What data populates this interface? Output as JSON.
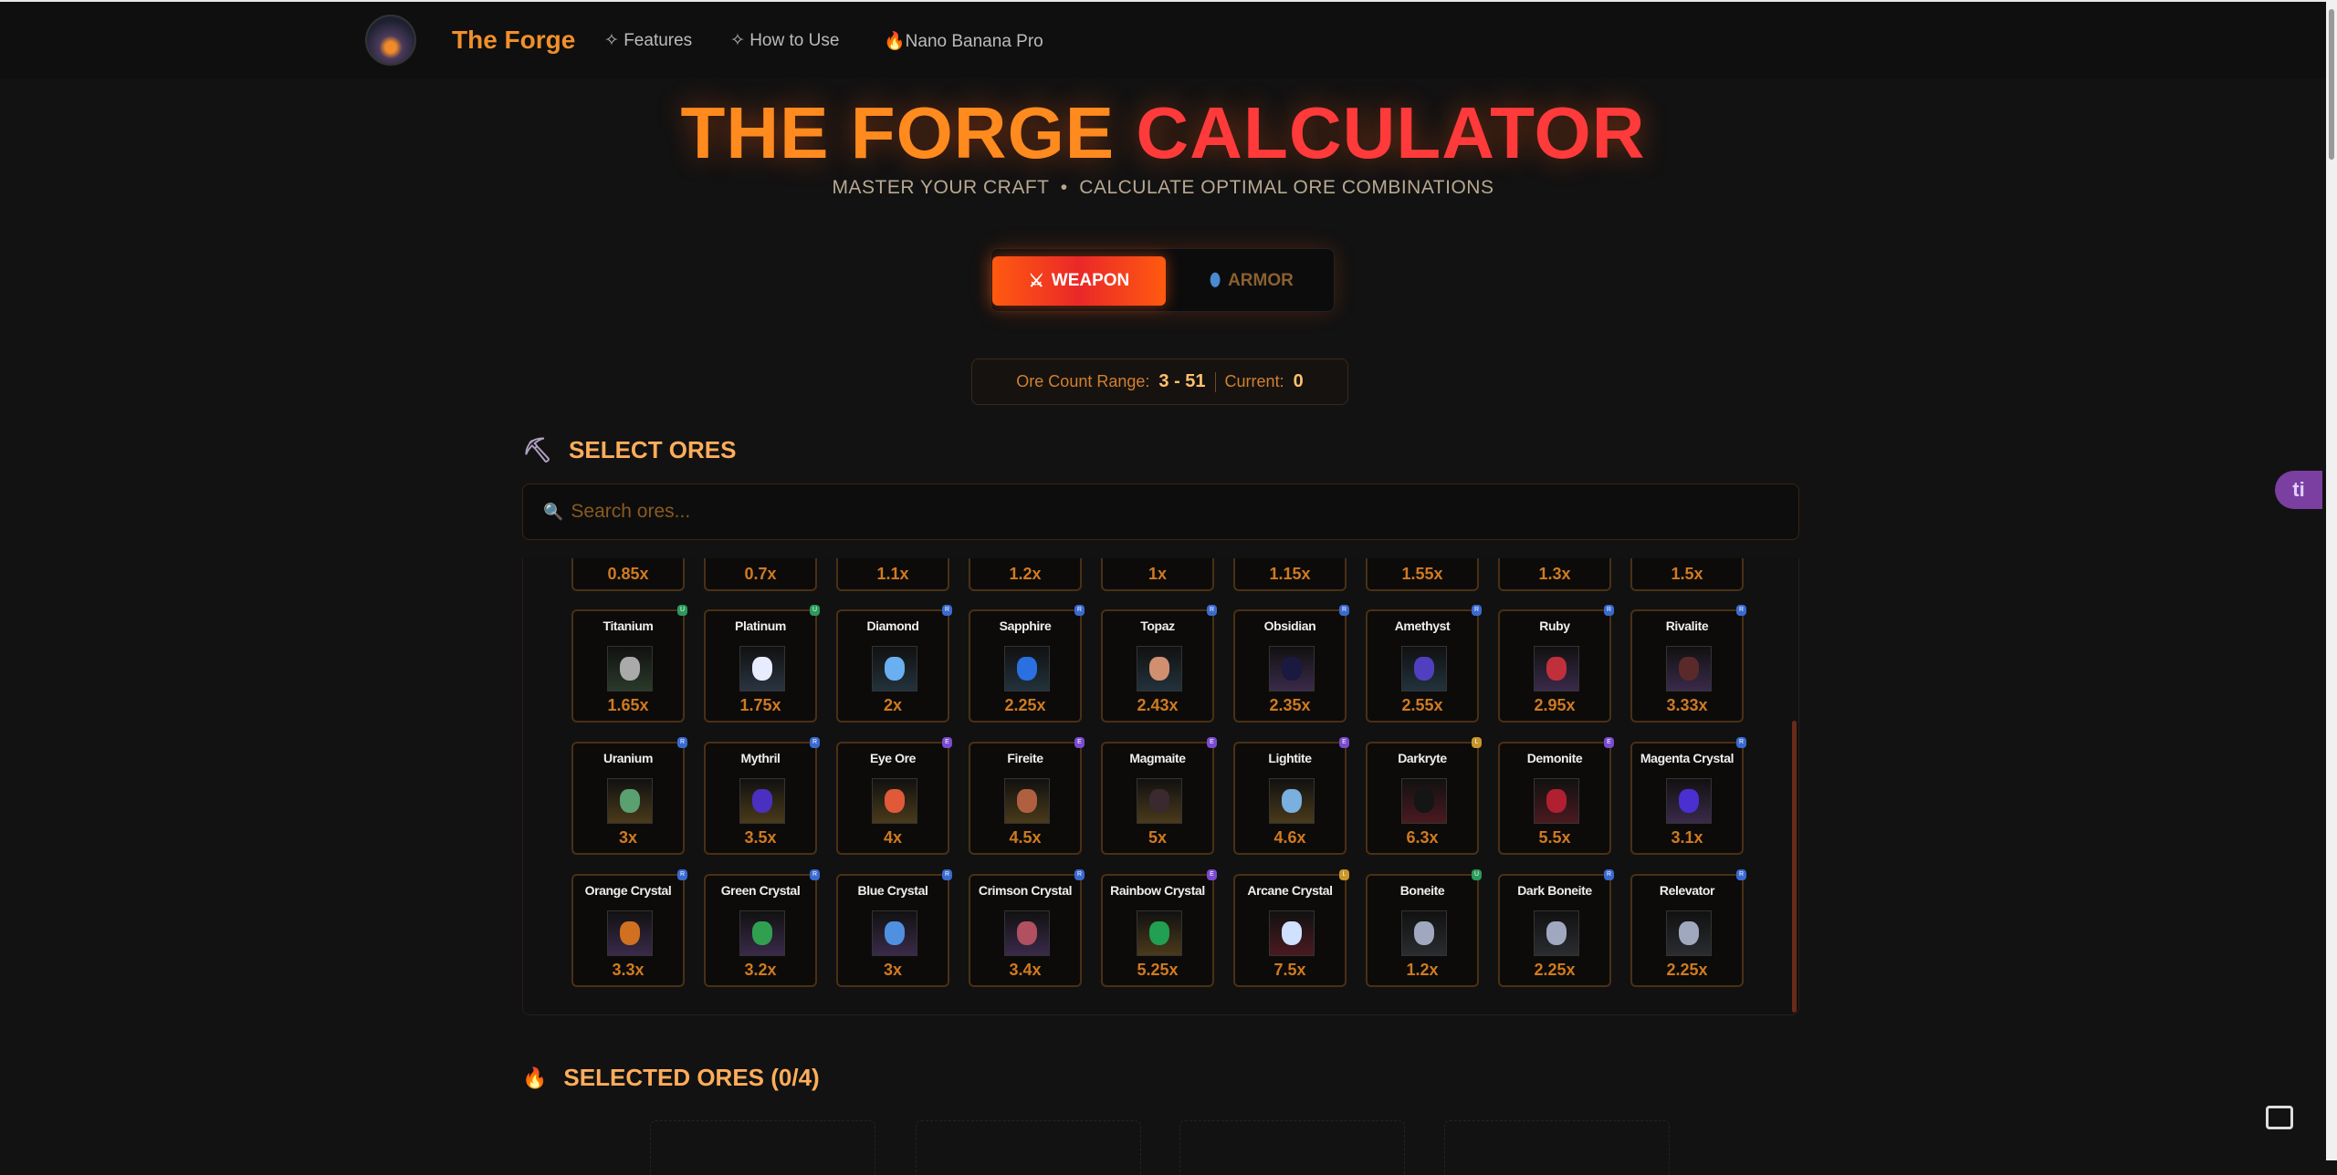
{
  "nav": {
    "brand": "The Forge",
    "logo_text": "THE FORGE CALCULATOR",
    "links": [
      {
        "label": "Features",
        "icon": "sparkles-icon"
      },
      {
        "label": "How to Use",
        "icon": "sparkles-icon"
      },
      {
        "label": "Nano Banana Pro",
        "icon": "fire-icon"
      }
    ]
  },
  "hero": {
    "title_a": "THE FORGE",
    "title_b": "CALCULATOR",
    "subtitle": "MASTER YOUR CRAFT  •  CALCULATE OPTIMAL ORE COMBINATIONS"
  },
  "mode": {
    "weapon": "WEAPON",
    "armor": "ARMOR",
    "active": "weapon"
  },
  "count": {
    "range_label": "Ore Count Range:",
    "range": "3 - 51",
    "current_label": "Current:",
    "current": "0"
  },
  "select": {
    "heading": "SELECT ORES",
    "search_placeholder": "Search ores..."
  },
  "badge_colors": {
    "U": "#2a9a5a",
    "R": "#3a6ad0",
    "E": "#7a4ad0",
    "L": "#c8962a"
  },
  "partial_row": [
    "0.85x",
    "0.7x",
    "1.1x",
    "1.2x",
    "1x",
    "1.15x",
    "1.55x",
    "1.3x",
    "1.5x"
  ],
  "ores": [
    {
      "name": "Titanium",
      "mult": "1.65x",
      "badge": "U",
      "bg": "#2a3a2a",
      "gem": "#aaa"
    },
    {
      "name": "Platinum",
      "mult": "1.75x",
      "badge": "U",
      "bg": "#2a3440",
      "gem": "#e8ecff"
    },
    {
      "name": "Diamond",
      "mult": "2x",
      "badge": "R",
      "bg": "#22323c",
      "gem": "#6ab0f0"
    },
    {
      "name": "Sapphire",
      "mult": "2.25x",
      "badge": "R",
      "bg": "#22323c",
      "gem": "#2a70e0"
    },
    {
      "name": "Topaz",
      "mult": "2.43x",
      "badge": "R",
      "bg": "#22323c",
      "gem": "#d09070"
    },
    {
      "name": "Obsidian",
      "mult": "2.35x",
      "badge": "R",
      "bg": "#3a2a4a",
      "gem": "#1a1a40"
    },
    {
      "name": "Amethyst",
      "mult": "2.55x",
      "badge": "R",
      "bg": "#22323c",
      "gem": "#5040c0"
    },
    {
      "name": "Ruby",
      "mult": "2.95x",
      "badge": "R",
      "bg": "#3a2a4a",
      "gem": "#c0303a"
    },
    {
      "name": "Rivalite",
      "mult": "3.33x",
      "badge": "R",
      "bg": "#3a2a4a",
      "gem": "#5a2a2a"
    },
    {
      "name": "Uranium",
      "mult": "3x",
      "badge": "R",
      "bg": "#4a3a1a",
      "gem": "#5aa070"
    },
    {
      "name": "Mythril",
      "mult": "3.5x",
      "badge": "R",
      "bg": "#4a3a1a",
      "gem": "#4a30c0"
    },
    {
      "name": "Eye Ore",
      "mult": "4x",
      "badge": "E",
      "bg": "#4a3a1a",
      "gem": "#e05a3a"
    },
    {
      "name": "Fireite",
      "mult": "4.5x",
      "badge": "E",
      "bg": "#4a3a1a",
      "gem": "#b06040"
    },
    {
      "name": "Magmaite",
      "mult": "5x",
      "badge": "E",
      "bg": "#4a3a1a",
      "gem": "#3a2a30"
    },
    {
      "name": "Lightite",
      "mult": "4.6x",
      "badge": "E",
      "bg": "#4a3a1a",
      "gem": "#7ab0e0"
    },
    {
      "name": "Darkryte",
      "mult": "6.3x",
      "badge": "L",
      "bg": "#4a1a20",
      "gem": "#151515"
    },
    {
      "name": "Demonite",
      "mult": "5.5x",
      "badge": "E",
      "bg": "#4a1a20",
      "gem": "#b02030"
    },
    {
      "name": "Magenta Crystal",
      "mult": "3.1x",
      "badge": "R",
      "bg": "#3a2a4a",
      "gem": "#4a30d0"
    },
    {
      "name": "Orange Crystal",
      "mult": "3.3x",
      "badge": "R",
      "bg": "#3a2a4a",
      "gem": "#d07020"
    },
    {
      "name": "Green Crystal",
      "mult": "3.2x",
      "badge": "R",
      "bg": "#3a2a4a",
      "gem": "#30a050"
    },
    {
      "name": "Blue Crystal",
      "mult": "3x",
      "badge": "R",
      "bg": "#3a2a4a",
      "gem": "#5090e0"
    },
    {
      "name": "Crimson Crystal",
      "mult": "3.4x",
      "badge": "R",
      "bg": "#3a2a4a",
      "gem": "#b05060"
    },
    {
      "name": "Rainbow Crystal",
      "mult": "5.25x",
      "badge": "E",
      "bg": "#4a3a1a",
      "gem": "#20a050"
    },
    {
      "name": "Arcane Crystal",
      "mult": "7.5x",
      "badge": "L",
      "bg": "#4a1a20",
      "gem": "#d0e0ff"
    },
    {
      "name": "Boneite",
      "mult": "1.2x",
      "badge": "U",
      "bg": "#2a2c30",
      "gem": "#a0a8c0"
    },
    {
      "name": "Dark Boneite",
      "mult": "2.25x",
      "badge": "R",
      "bg": "#2a2c30",
      "gem": "#a0a8c0"
    },
    {
      "name": "Relevator",
      "mult": "2.25x",
      "badge": "R",
      "bg": "#2a2c30",
      "gem": "#a0a8c0"
    }
  ],
  "selected": {
    "heading": "SELECTED ORES (0/4)"
  },
  "widget": {
    "label": "ti"
  }
}
